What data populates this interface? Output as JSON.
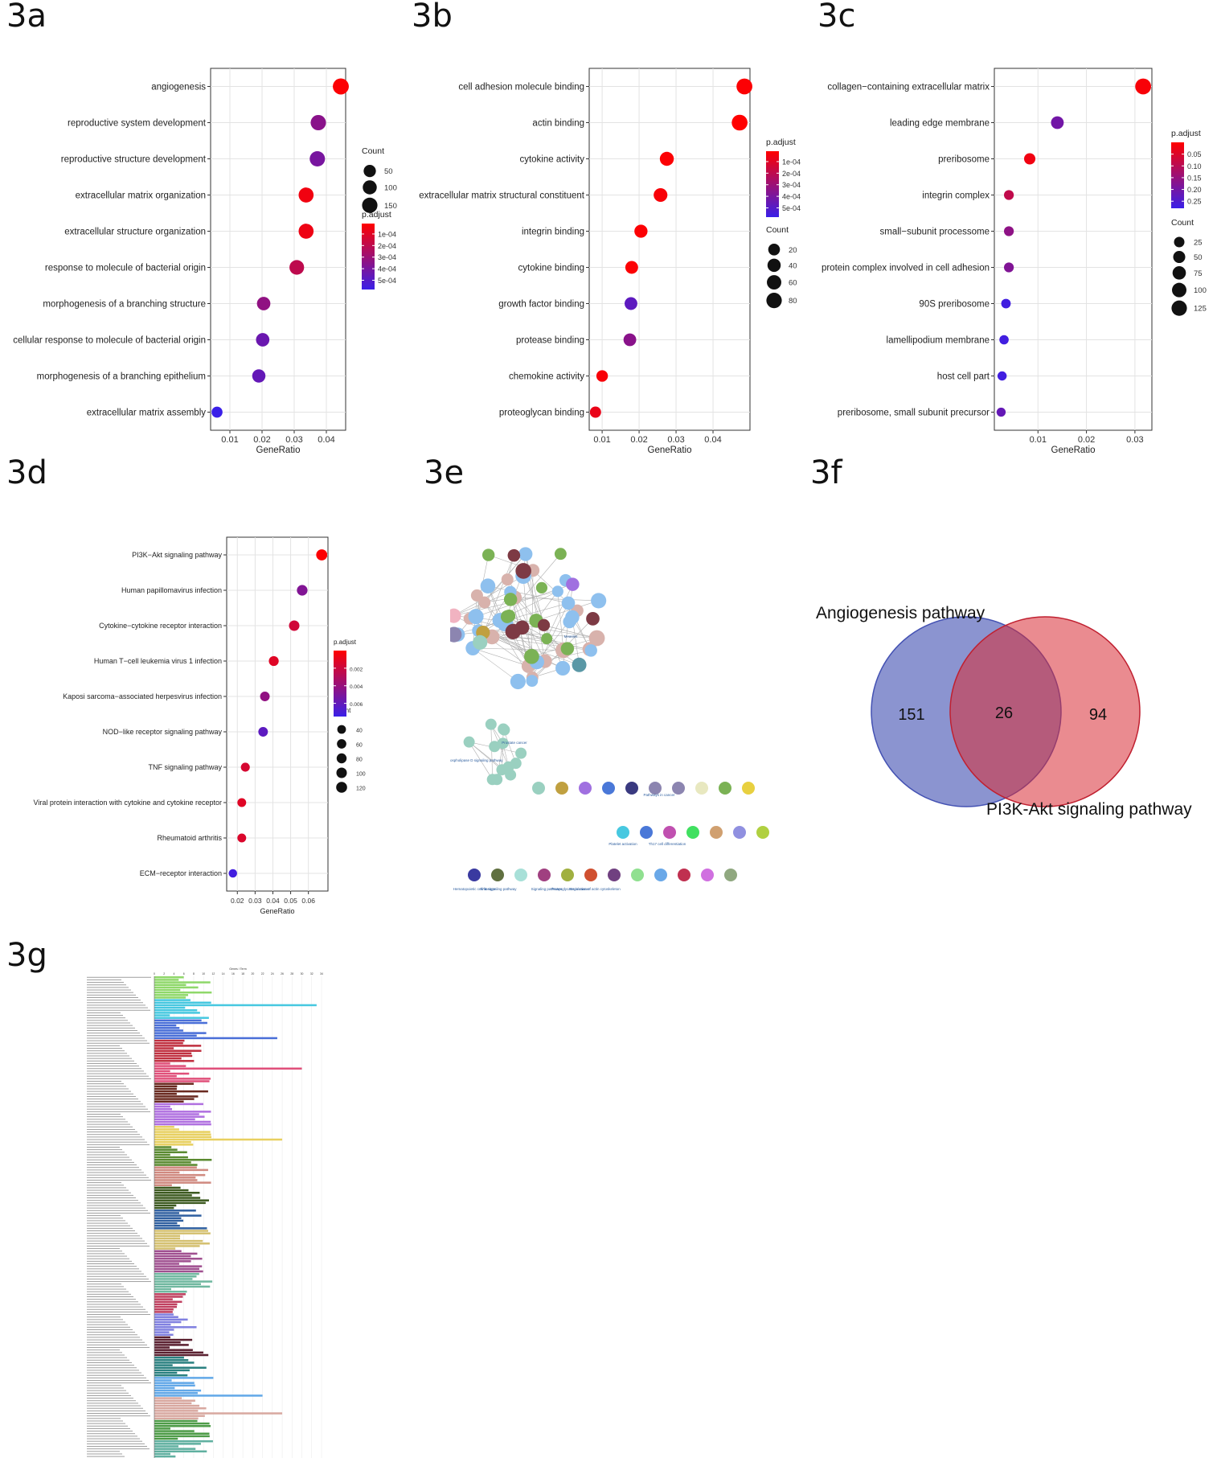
{
  "panels": {
    "a": {
      "label": "3a"
    },
    "b": {
      "label": "3b"
    },
    "c": {
      "label": "3c"
    },
    "d": {
      "label": "3d"
    },
    "e": {
      "label": "3e"
    },
    "f": {
      "label": "3f"
    },
    "g": {
      "label": "3g"
    }
  },
  "chart_data": [
    {
      "id": "a",
      "type": "scatter",
      "xlabel": "GeneRatio",
      "xlim": [
        0.004,
        0.046
      ],
      "xticks": [
        0.01,
        0.02,
        0.03,
        0.04
      ],
      "categories": [
        "angiogenesis",
        "reproductive system development",
        "reproductive structure development",
        "extracellular matrix organization",
        "extracellular structure organization",
        "response to molecule of bacterial origin",
        "morphogenesis of a branching structure",
        "cellular response to molecule of bacterial origin",
        "morphogenesis of a branching epithelium",
        "extracellular matrix assembly"
      ],
      "x": [
        0.0445,
        0.0375,
        0.0372,
        0.0337,
        0.0337,
        0.0308,
        0.0205,
        0.0202,
        0.019,
        0.006
      ],
      "count": [
        177,
        149,
        148,
        134,
        134,
        122,
        81,
        80,
        75,
        24
      ],
      "padjust": [
        2e-05,
        0.00035,
        0.0004,
        5e-05,
        6e-05,
        0.0002,
        0.00033,
        0.00044,
        0.00046,
        0.00058
      ],
      "size_legend": {
        "title": "Count",
        "values": [
          50,
          100,
          150
        ]
      },
      "color_legend": {
        "title": "p.adjust",
        "ticks": [
          "1e-04",
          "2e-04",
          "3e-04",
          "4e-04",
          "5e-04"
        ],
        "range": [
          1e-05,
          0.00058
        ]
      },
      "colors": {
        "low": "#ff0000",
        "high": "#3a1fe8"
      }
    },
    {
      "id": "b",
      "type": "scatter",
      "xlabel": "GeneRatio",
      "xlim": [
        0.0065,
        0.05
      ],
      "xticks": [
        0.01,
        0.02,
        0.03,
        0.04
      ],
      "categories": [
        "cell adhesion molecule binding",
        "actin binding",
        "cytokine activity",
        "extracellular matrix structural constituent",
        "integrin binding",
        "cytokine binding",
        "growth factor binding",
        "protease binding",
        "chemokine activity",
        "proteoglycan binding"
      ],
      "x": [
        0.0485,
        0.0472,
        0.0275,
        0.0258,
        0.0205,
        0.018,
        0.0178,
        0.0175,
        0.01,
        0.0082
      ],
      "count": [
        90,
        88,
        52,
        48,
        38,
        33,
        33,
        32,
        18,
        15
      ],
      "padjust": [
        2e-05,
        1e-05,
        2e-05,
        3e-05,
        2e-05,
        2e-05,
        0.00048,
        0.00035,
        3e-05,
        7e-05
      ],
      "size_legend": {
        "title": "Count",
        "values": [
          20,
          40,
          60,
          80
        ]
      },
      "color_legend": {
        "title": "p.adjust",
        "ticks": [
          "1e-04",
          "2e-04",
          "3e-04",
          "4e-04",
          "5e-04"
        ],
        "range": [
          1e-05,
          0.00058
        ]
      },
      "colors": {
        "low": "#ff0000",
        "high": "#3a1fe8"
      }
    },
    {
      "id": "c",
      "type": "scatter",
      "xlabel": "GeneRatio",
      "xlim": [
        0.001,
        0.0335
      ],
      "xticks": [
        0.01,
        0.02,
        0.03
      ],
      "categories": [
        "collagen−containing extracellular matrix",
        "leading edge membrane",
        "preribosome",
        "integrin complex",
        "small−subunit processome",
        "protein complex involved in cell adhesion",
        "90S preribosome",
        "lamellipodium membrane",
        "host cell part",
        "preribosome, small subunit precursor"
      ],
      "x": [
        0.0317,
        0.014,
        0.0083,
        0.004,
        0.004,
        0.004,
        0.0034,
        0.003,
        0.0026,
        0.0024
      ],
      "count": [
        140,
        62,
        37,
        18,
        18,
        18,
        15,
        13,
        12,
        11
      ],
      "padjust": [
        0.01,
        0.2,
        0.02,
        0.09,
        0.16,
        0.18,
        0.27,
        0.27,
        0.27,
        0.22
      ],
      "size_legend": {
        "title": "Count",
        "values": [
          25,
          50,
          75,
          100,
          125
        ]
      },
      "color_legend": {
        "title": "p.adjust",
        "ticks": [
          "0.05",
          "0.10",
          "0.15",
          "0.20",
          "0.25"
        ],
        "range": [
          0.0,
          0.28
        ]
      },
      "colors": {
        "low": "#ff0000",
        "high": "#3a1fe8"
      }
    },
    {
      "id": "d",
      "type": "scatter",
      "xlabel": "GeneRatio",
      "xlim": [
        0.014,
        0.071
      ],
      "xticks": [
        0.02,
        0.03,
        0.04,
        0.05,
        0.06
      ],
      "categories": [
        "PI3K−Akt signaling pathway",
        "Human papillomavirus infection",
        "Cytokine−cytokine receptor interaction",
        "Human T−cell leukemia virus 1 infection",
        "Kaposi sarcoma−associated herpesvirus infection",
        "NOD−like receptor signaling pathway",
        "TNF signaling pathway",
        "Viral protein interaction with cytokine and cytokine receptor",
        "Rheumatoid arthritis",
        "ECM−receptor interaction"
      ],
      "x": [
        0.0675,
        0.0565,
        0.052,
        0.0405,
        0.0355,
        0.0345,
        0.0245,
        0.0225,
        0.0225,
        0.0175
      ],
      "count": [
        128,
        107,
        99,
        77,
        67,
        66,
        47,
        43,
        43,
        33
      ],
      "padjust": [
        0.0001,
        0.0048,
        0.0018,
        0.0012,
        0.0042,
        0.0062,
        0.0016,
        0.0012,
        0.0014,
        0.0072
      ],
      "size_legend": {
        "title": "Count",
        "values": [
          40,
          60,
          80,
          100,
          120
        ]
      },
      "color_legend": {
        "title": "p.adjust",
        "ticks": [
          "0.002",
          "0.004",
          "0.006"
        ],
        "range": [
          0.0,
          0.0075
        ]
      },
      "colors": {
        "low": "#ff0000",
        "high": "#3a1fe8"
      }
    },
    {
      "id": "f",
      "type": "venn",
      "sets": [
        {
          "name": "Angiogenesis pathway",
          "only": 151,
          "color": "#4452b3"
        },
        {
          "name": "PI3K-Akt signaling pathway",
          "only": 94,
          "color": "#d92b35"
        }
      ],
      "intersection": 26
    },
    {
      "id": "g",
      "type": "bar",
      "xlabel": "Genes / Term",
      "xlim": [
        0,
        34
      ],
      "xticks": [
        0,
        2,
        4,
        6,
        8,
        10,
        12,
        14,
        16,
        18,
        20,
        22,
        24,
        26,
        28,
        30,
        32,
        34
      ],
      "colors": [
        "#8fd86a",
        "#47c8e0",
        "#4a6fd8",
        "#c03040",
        "#e0507a",
        "#6a2a20",
        "#b070e0",
        "#e8d060",
        "#5a8a30",
        "#d08a80",
        "#3d5a20",
        "#3060a0",
        "#d4c070",
        "#a05090",
        "#70b8a0",
        "#c04060",
        "#8080e0",
        "#5a2030",
        "#2a8080",
        "#62a8e8",
        "#d8a8a0",
        "#4e9c48",
        "#60b0a0"
      ]
    }
  ],
  "network": {
    "labels": [
      "Hematopoietic cell lineage",
      "Wnt signaling pathway",
      "Signaling pathways",
      "Proteoglycans in cancer",
      "Regulation of actin cytoskeleton",
      "Platelet activation",
      "Th17 cell differentiation",
      "Phospholipase D signaling pathway",
      "Prostate cancer",
      "Measles",
      "Pathways in cancer"
    ]
  }
}
